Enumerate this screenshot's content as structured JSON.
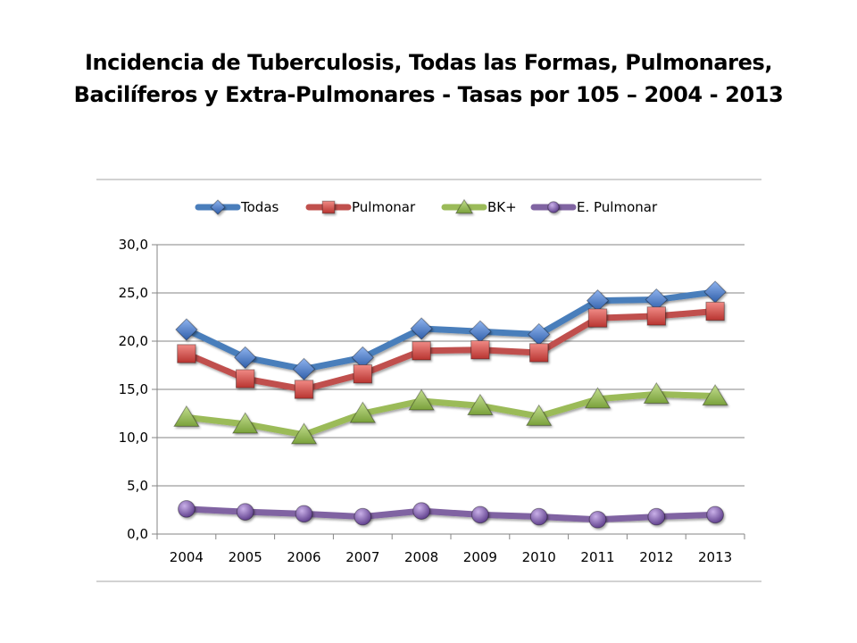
{
  "title": {
    "line1": "Incidencia de Tuberculosis, Todas las Formas, Pulmonares,",
    "line2": "Bacilíferos y Extra-Pulmonares - Tasas por 105 – 2004 - 2013"
  },
  "chart_data": {
    "type": "line",
    "x": [
      "2004",
      "2005",
      "2006",
      "2007",
      "2008",
      "2009",
      "2010",
      "2011",
      "2012",
      "2013"
    ],
    "ylim": [
      0,
      30
    ],
    "yticks": [
      0,
      5,
      10,
      15,
      20,
      25,
      30
    ],
    "ytick_labels": [
      "0,0",
      "5,0",
      "10,0",
      "15,0",
      "20,0",
      "25,0",
      "30,0"
    ],
    "grid": "horizontal",
    "legend": "top",
    "series": [
      {
        "name": "Todas",
        "marker": "diamond",
        "color": "#4a7ebb",
        "marker_color": "#3d6fc2",
        "values": [
          21.2,
          18.3,
          17.1,
          18.3,
          21.3,
          21.0,
          20.7,
          24.2,
          24.3,
          25.1
        ]
      },
      {
        "name": "Pulmonar",
        "marker": "square",
        "color": "#c0504d",
        "marker_color": "#d0463f",
        "values": [
          18.7,
          16.1,
          15.0,
          16.6,
          19.0,
          19.1,
          18.8,
          22.4,
          22.6,
          23.1
        ]
      },
      {
        "name": "BK+",
        "marker": "triangle",
        "color": "#9bbb59",
        "marker_color": "#8db14a",
        "values": [
          12.1,
          11.4,
          10.3,
          12.5,
          13.8,
          13.3,
          12.2,
          14.0,
          14.5,
          14.3
        ]
      },
      {
        "name": "E. Pulmonar",
        "marker": "circle",
        "color": "#8064a2",
        "marker_color": "#7a56a8",
        "values": [
          2.6,
          2.3,
          2.1,
          1.8,
          2.4,
          2.0,
          1.8,
          1.5,
          1.8,
          2.0
        ]
      }
    ]
  }
}
